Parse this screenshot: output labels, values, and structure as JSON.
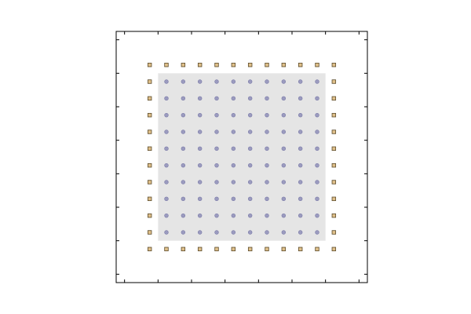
{
  "chart_data": {
    "type": "scatter",
    "title": "",
    "xlabel": "",
    "ylabel": "",
    "xlim": [
      -0.75,
      6.75
    ],
    "ylim": [
      -0.75,
      6.75
    ],
    "xticks": [
      -0.5,
      0.5,
      1.5,
      2.5,
      3.5,
      4.5,
      5.5,
      6.5
    ],
    "yticks": [
      -0.5,
      0.5,
      1.5,
      2.5,
      3.5,
      4.5,
      5.5,
      6.5
    ],
    "tick_labels_shown": false,
    "grid": false,
    "legend": "none",
    "shaded_region": {
      "x": [
        0.5,
        5.5
      ],
      "y": [
        0.5,
        5.5
      ],
      "color": "#e5e5e5"
    },
    "series": [
      {
        "marker": "circle",
        "color": "#9b9bbf",
        "edge_color": "#7b7ba8",
        "grid": {
          "x_start": 0.75,
          "x_step": 0.5,
          "nx": 10,
          "y_start": 0.75,
          "y_step": 0.5,
          "ny": 10
        }
      },
      {
        "marker": "square",
        "color": "#e0c08a",
        "edge_color": "#5a4a2a",
        "perimeter": {
          "x_start": 0.25,
          "x_step": 0.5,
          "nx": 12,
          "y_start": 0.25,
          "y_step": 0.5,
          "ny": 12
        }
      }
    ]
  }
}
